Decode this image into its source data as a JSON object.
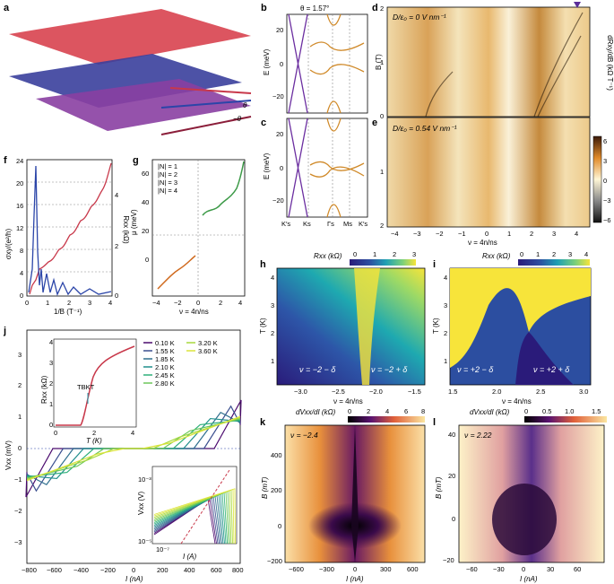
{
  "panels": {
    "a": "a",
    "b": "b",
    "c": "c",
    "d": "d",
    "e": "e",
    "f": "f",
    "g": "g",
    "h": "h",
    "i": "i",
    "j": "j",
    "k": "k",
    "l": "l"
  },
  "panel_a": {
    "theta_label": "θ",
    "neg_theta_label": "−θ"
  },
  "panel_b": {
    "title": "θ = 1.57°",
    "ylabel": "E (meV)",
    "yticks": [
      "20",
      "0",
      "−20"
    ]
  },
  "panel_c": {
    "ylabel": "E (meV)",
    "yticks": [
      "20",
      "0",
      "−20"
    ],
    "xticks": [
      "K′s",
      "Ks",
      "Γs",
      "Ms",
      "K′s"
    ]
  },
  "panel_d": {
    "annotation": "D/ε₀ = 0 V nm⁻¹",
    "ylabel": "B (T)",
    "yticks": [
      "2",
      "1",
      "0"
    ],
    "cbar_label": "dRxy/dB (kΩ T⁻¹)"
  },
  "panel_e": {
    "annotation": "D/ε₀ = 0.54 V nm⁻¹",
    "yticks": [
      "1",
      "2"
    ],
    "xticks": [
      "−4",
      "−3",
      "−2",
      "−1",
      "0",
      "1",
      "2",
      "3",
      "4"
    ],
    "xlabel": "ν = 4n/ns",
    "cbar_ticks": [
      "6",
      "3",
      "0",
      "−3",
      "−6"
    ]
  },
  "panel_f": {
    "ylabel_left": "σxy/(e²/h)",
    "ylabel_right": "Rxx (kΩ)",
    "yticks_left": [
      "24",
      "20",
      "16",
      "12",
      "8",
      "4",
      "0"
    ],
    "yticks_right": [
      "4",
      "2",
      "0"
    ],
    "xticks": [
      "0",
      "1",
      "2",
      "3",
      "4"
    ],
    "xlabel": "1/B (T⁻¹)"
  },
  "panel_g": {
    "ylabel": "μ (meV)",
    "yticks": [
      "60",
      "40",
      "20",
      "0"
    ],
    "xticks": [
      "−4",
      "−2",
      "0",
      "2",
      "4"
    ],
    "xlabel": "ν = 4n/ns",
    "legend": [
      {
        "label": "|N| = 1",
        "color": "#2aa3c8"
      },
      {
        "label": "|N| = 2",
        "color": "#d06a1e"
      },
      {
        "label": "|N| = 3",
        "color": "#3d9a48"
      },
      {
        "label": "|N| = 4",
        "color": "#8e3f9a"
      }
    ]
  },
  "panel_h": {
    "cbar_label": "Rxx (kΩ)",
    "cbar_ticks": [
      "0",
      "1",
      "2",
      "3"
    ],
    "ylabel": "T (K)",
    "yticks": [
      "4",
      "3",
      "2",
      "1"
    ],
    "xticks": [
      "−3.0",
      "−2.5",
      "−2.0",
      "−1.5"
    ],
    "xlabel": "ν = 4n/ns",
    "ann_left": "ν = −2 − δ",
    "ann_right": "ν = −2 + δ"
  },
  "panel_i": {
    "cbar_label": "Rxx (kΩ)",
    "cbar_ticks": [
      "0",
      "1",
      "2",
      "3",
      "4"
    ],
    "ylabel": "T (K)",
    "yticks": [
      "4",
      "3",
      "2",
      "1"
    ],
    "xticks": [
      "1.5",
      "2.0",
      "2.5",
      "3.0"
    ],
    "xlabel": "ν = 4n/ns",
    "ann_left": "ν = +2 − δ",
    "ann_right": "ν = +2 + δ"
  },
  "panel_j": {
    "ylabel": "Vxx (mV)",
    "yticks": [
      "3",
      "2",
      "1",
      "0",
      "−1",
      "−2",
      "−3"
    ],
    "xticks": [
      "−800",
      "−600",
      "−400",
      "−200",
      "0",
      "200",
      "400",
      "600",
      "800"
    ],
    "xlabel": "I (nA)",
    "inset1": {
      "ylabel": "Rxx (kΩ)",
      "yticks": [
        "4",
        "3",
        "2",
        "1",
        "0"
      ],
      "xticks": [
        "0",
        "2",
        "4"
      ],
      "xlabel": "T (K)",
      "tbkt": "TBKT"
    },
    "inset2": {
      "ylabel": "Vxx (V)",
      "ytick_top": "10⁻³",
      "ytick_bottom": "10⁻⁵",
      "xtick": "10⁻⁷",
      "xlabel": "I (A)"
    },
    "legend": [
      {
        "label": "0.10 K",
        "color": "#4b0a6e"
      },
      {
        "label": "1.55 K",
        "color": "#3b4f8f"
      },
      {
        "label": "1.85 K",
        "color": "#2f6f8e"
      },
      {
        "label": "2.10 K",
        "color": "#218f8c"
      },
      {
        "label": "2.45 K",
        "color": "#2fb07a"
      },
      {
        "label": "2.80 K",
        "color": "#6cc75a"
      },
      {
        "label": "3.20 K",
        "color": "#a8d93d"
      },
      {
        "label": "3.60 K",
        "color": "#dbe43a"
      }
    ]
  },
  "panel_k": {
    "cbar_label": "dVxx/dI (kΩ)",
    "cbar_ticks": [
      "0",
      "2",
      "4",
      "6",
      "8"
    ],
    "annotation": "ν = −2.4",
    "ylabel": "B (mT)",
    "yticks": [
      "400",
      "200",
      "0",
      "−200"
    ],
    "xticks": [
      "−600",
      "−300",
      "0",
      "300",
      "600"
    ],
    "xlabel": "I (nA)"
  },
  "panel_l": {
    "cbar_label": "dVxx/dI (kΩ)",
    "cbar_ticks": [
      "0",
      "0.5",
      "1.0",
      "1.5"
    ],
    "annotation": "ν = 2.22",
    "ylabel": "B (mT)",
    "yticks": [
      "40",
      "20",
      "0",
      "−20",
      "−40"
    ],
    "xticks": [
      "−60",
      "−30",
      "0",
      "30",
      "60"
    ],
    "xlabel": "I (nA)"
  },
  "colors": {
    "red": "#c8384a",
    "blue": "#2b45a8",
    "purple": "#6b2ea0",
    "orange": "#d08a2a",
    "yellow": "#f7e43a",
    "navy": "#1e1f7a"
  }
}
